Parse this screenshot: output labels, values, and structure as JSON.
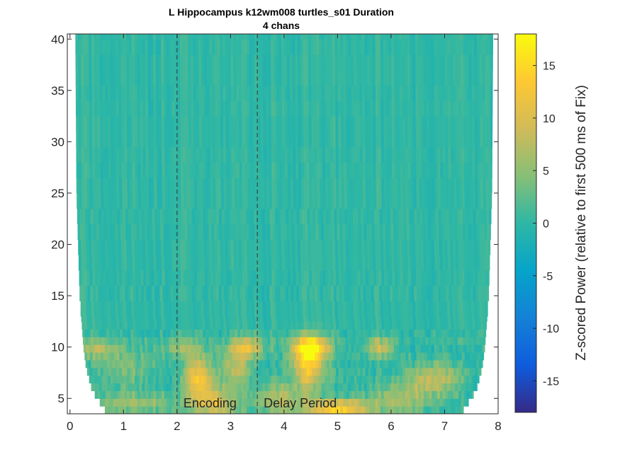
{
  "chart_data": {
    "type": "heatmap",
    "title": "L Hippocampus k12wm008 turtles_s01 Duration",
    "subtitle": "4 chans",
    "xlabel": "",
    "ylabel": "",
    "xlim": [
      -0.05,
      8.0
    ],
    "ylim": [
      3.5,
      40.5
    ],
    "xticks": [
      0,
      1,
      2,
      3,
      4,
      5,
      6,
      7,
      8
    ],
    "yticks": [
      5,
      10,
      15,
      20,
      25,
      30,
      35,
      40
    ],
    "colorbar": {
      "label": "Z-scored Power (relative to first 500 ms of Fix)",
      "clim": [
        -18,
        18
      ],
      "ticks": [
        -15,
        -10,
        -5,
        0,
        5,
        10,
        15
      ],
      "colormap": "parula"
    },
    "event_lines": [
      {
        "x": 2.0,
        "label": "Encoding"
      },
      {
        "x": 3.5,
        "label": "Delay Period"
      }
    ],
    "background_value": 0,
    "cone_of_influence": [
      {
        "freq": 4,
        "x_start": 0.65,
        "x_end": 7.35
      },
      {
        "freq": 5,
        "x_start": 0.5,
        "x_end": 7.5
      },
      {
        "freq": 6,
        "x_start": 0.4,
        "x_end": 7.6
      },
      {
        "freq": 8,
        "x_start": 0.3,
        "x_end": 7.7
      },
      {
        "freq": 10,
        "x_start": 0.25,
        "x_end": 7.75
      },
      {
        "freq": 15,
        "x_start": 0.18,
        "x_end": 7.82
      },
      {
        "freq": 25,
        "x_start": 0.12,
        "x_end": 7.88
      },
      {
        "freq": 40,
        "x_start": 0.1,
        "x_end": 7.9
      }
    ],
    "power_clusters": [
      {
        "t": 2.4,
        "f": 7,
        "value": 13,
        "dt": 0.25,
        "df": 2
      },
      {
        "t": 2.7,
        "f": 4.5,
        "value": 10,
        "dt": 0.4,
        "df": 1.5
      },
      {
        "t": 3.3,
        "f": 10,
        "value": 11,
        "dt": 0.3,
        "df": 1
      },
      {
        "t": 3.1,
        "f": 8,
        "value": 7,
        "dt": 0.3,
        "df": 2
      },
      {
        "t": 4.5,
        "f": 10,
        "value": 17,
        "dt": 0.35,
        "df": 1.2
      },
      {
        "t": 4.45,
        "f": 8,
        "value": 12,
        "dt": 0.3,
        "df": 2
      },
      {
        "t": 5.0,
        "f": 4.0,
        "value": 14,
        "dt": 0.6,
        "df": 1
      },
      {
        "t": 5.8,
        "f": 10,
        "value": 9,
        "dt": 0.25,
        "df": 1
      },
      {
        "t": 6.8,
        "f": 7,
        "value": 8,
        "dt": 0.5,
        "df": 1.5
      },
      {
        "t": 1.2,
        "f": 4.5,
        "value": 6,
        "dt": 0.8,
        "df": 1
      },
      {
        "t": 1.0,
        "f": 8.5,
        "value": 4,
        "dt": 0.6,
        "df": 2
      },
      {
        "t": 3.9,
        "f": 5,
        "value": 7,
        "dt": 0.5,
        "df": 1.5
      },
      {
        "t": 6.2,
        "f": 5,
        "value": 6,
        "dt": 0.6,
        "df": 1.5
      },
      {
        "t": 2.1,
        "f": 10,
        "value": 5,
        "dt": 0.4,
        "df": 1
      },
      {
        "t": 0.5,
        "f": 10,
        "value": 6,
        "dt": 0.3,
        "df": 1
      }
    ]
  }
}
